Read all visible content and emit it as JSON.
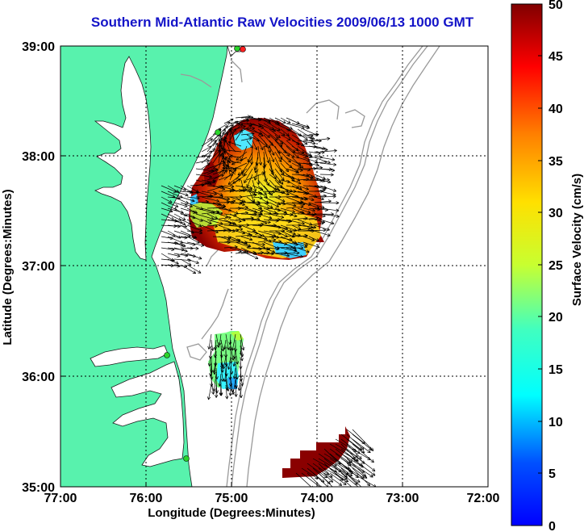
{
  "title": "Southern Mid-Atlantic Raw Velocities 2009/06/13 1000 GMT",
  "axes": {
    "x_label": "Longitude (Degrees:Minutes)",
    "y_label": "Latitude (Degrees:Minutes)",
    "x_ticks": [
      "77:00",
      "76:00",
      "75:00",
      "74:00",
      "73:00",
      "72:00"
    ],
    "y_ticks": [
      "39:00",
      "38:00",
      "37:00",
      "36:00",
      "35:00"
    ],
    "x_range_deg_west": [
      77,
      72
    ],
    "y_range_deg_north": [
      35,
      39
    ]
  },
  "colorbar": {
    "label": "Surface Velocity (cm/s)",
    "ticks": [
      "50",
      "45",
      "40",
      "35",
      "30",
      "25",
      "20",
      "15",
      "10",
      "5",
      "0"
    ],
    "range": [
      0,
      50
    ],
    "colormap": "jet"
  },
  "colors": {
    "land": "#58f2ad",
    "title": "#1414c8",
    "bathymetry": "#9a9a9a",
    "station": "#2ad42a",
    "station_red": "#ff2020"
  }
}
